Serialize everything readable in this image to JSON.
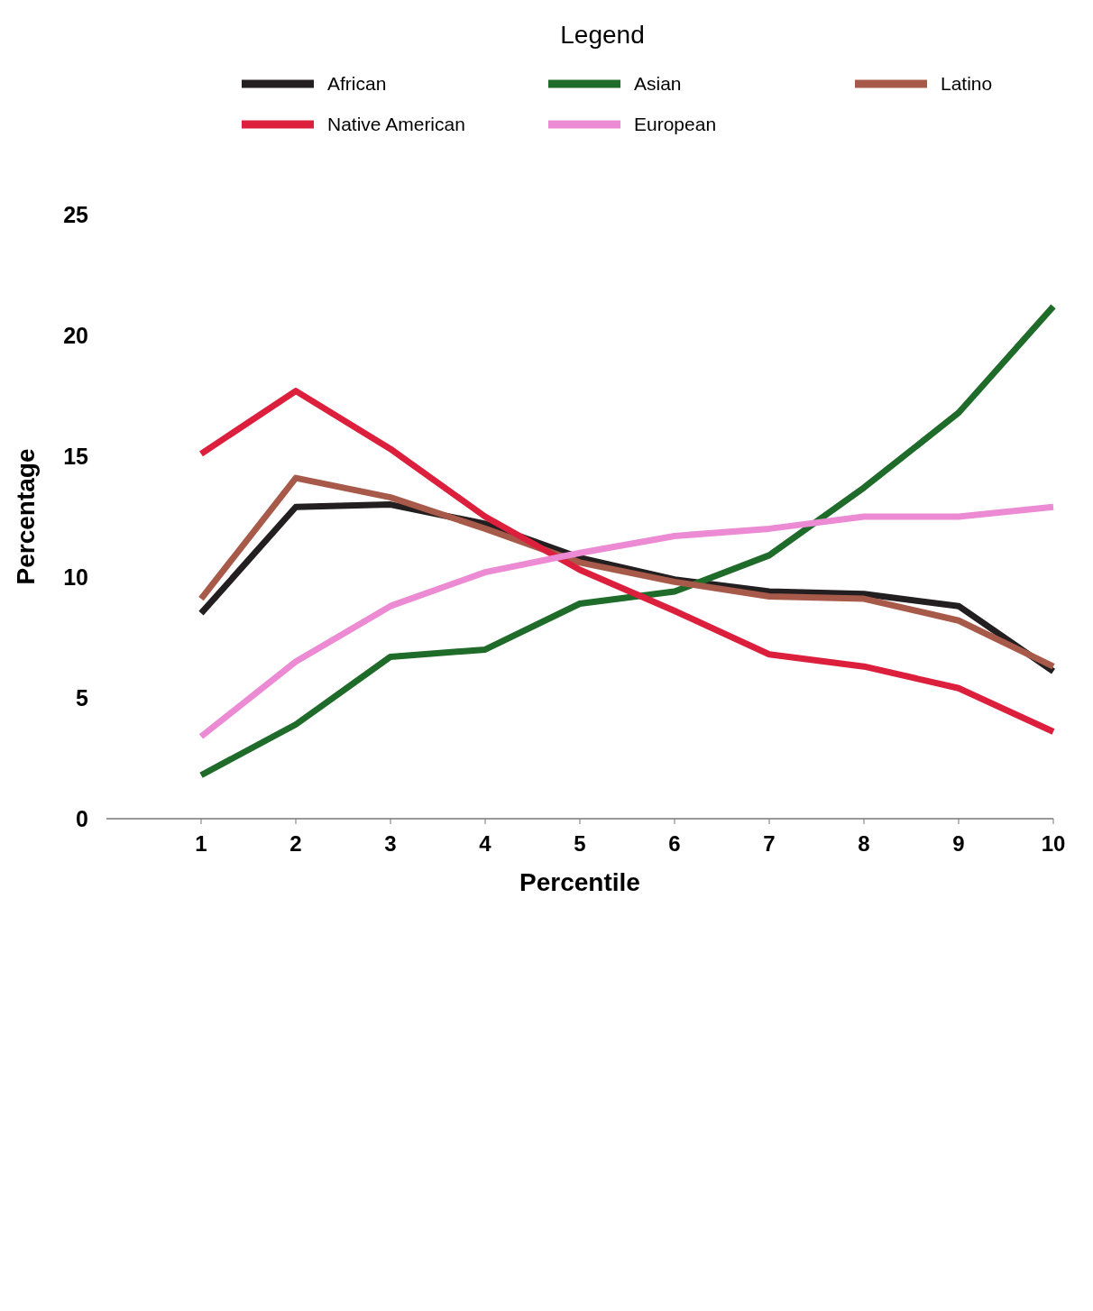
{
  "chart_data": {
    "type": "line",
    "xlabel": "Percentile",
    "ylabel": "Percentage",
    "legend_title": "Legend",
    "legend": "top",
    "grid": false,
    "marker": "none",
    "line_style": "solid",
    "x": [
      1,
      2,
      3,
      4,
      5,
      6,
      7,
      8,
      9,
      10
    ],
    "xlim": [
      0,
      10
    ],
    "xticks": [
      1,
      2,
      3,
      4,
      5,
      6,
      7,
      8,
      9,
      10
    ],
    "ylim": [
      0,
      25
    ],
    "yticks": [
      0,
      5,
      10,
      15,
      20,
      25
    ],
    "series": [
      {
        "name": "African",
        "color": "#231f20",
        "values": [
          8.5,
          12.9,
          13.0,
          12.2,
          10.8,
          9.9,
          9.4,
          9.3,
          8.8,
          6.1
        ]
      },
      {
        "name": "Asian",
        "color": "#1f6b2a",
        "values": [
          1.8,
          3.9,
          6.7,
          7.0,
          8.9,
          9.4,
          10.9,
          13.7,
          16.8,
          21.2
        ]
      },
      {
        "name": "Latino",
        "color": "#a85a4a",
        "values": [
          9.1,
          14.1,
          13.3,
          12.0,
          10.6,
          9.8,
          9.2,
          9.1,
          8.2,
          6.3
        ]
      },
      {
        "name": "Native American",
        "color": "#dc1f3c",
        "values": [
          15.1,
          17.7,
          15.3,
          12.5,
          10.3,
          8.6,
          6.8,
          6.3,
          5.4,
          3.6
        ]
      },
      {
        "name": "European",
        "color": "#ec8ad4",
        "values": [
          3.4,
          6.5,
          8.8,
          10.2,
          11.0,
          11.7,
          12.0,
          12.5,
          12.5,
          12.9
        ]
      }
    ]
  }
}
